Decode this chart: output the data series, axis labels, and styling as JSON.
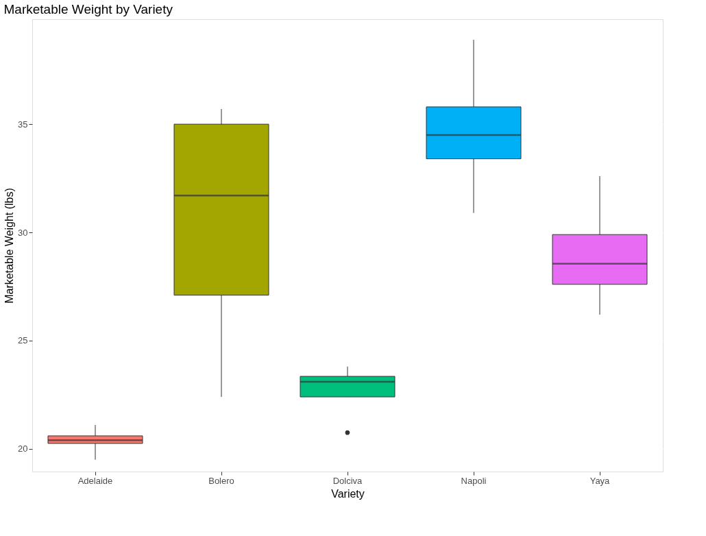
{
  "chart_data": {
    "type": "box",
    "title": "Marketable Weight by Variety",
    "xlabel": "Variety",
    "ylabel": "Marketable Weight (lbs)",
    "categories": [
      "Adelaide",
      "Bolero",
      "Dolciva",
      "Napoli",
      "Yaya"
    ],
    "colors": [
      "#f8766d",
      "#a3a500",
      "#00bf7d",
      "#00b0f6",
      "#e76bf3"
    ],
    "boxes": [
      {
        "low": 19.5,
        "q1": 20.25,
        "median": 20.4,
        "q3": 20.6,
        "high": 21.1
      },
      {
        "low": 22.4,
        "q1": 27.1,
        "median": 31.7,
        "q3": 35.0,
        "high": 35.7
      },
      {
        "low": 22.4,
        "q1": 22.4,
        "median": 23.1,
        "q3": 23.35,
        "high": 23.8,
        "outliers": [
          20.75
        ]
      },
      {
        "low": 30.9,
        "q1": 33.4,
        "median": 34.5,
        "q3": 35.8,
        "high": 38.9
      },
      {
        "low": 26.2,
        "q1": 27.6,
        "median": 28.55,
        "q3": 29.9,
        "high": 32.6
      }
    ],
    "ylim": [
      18.95,
      39.85
    ],
    "yticks": [
      20,
      25,
      30,
      35
    ],
    "grid": true
  }
}
